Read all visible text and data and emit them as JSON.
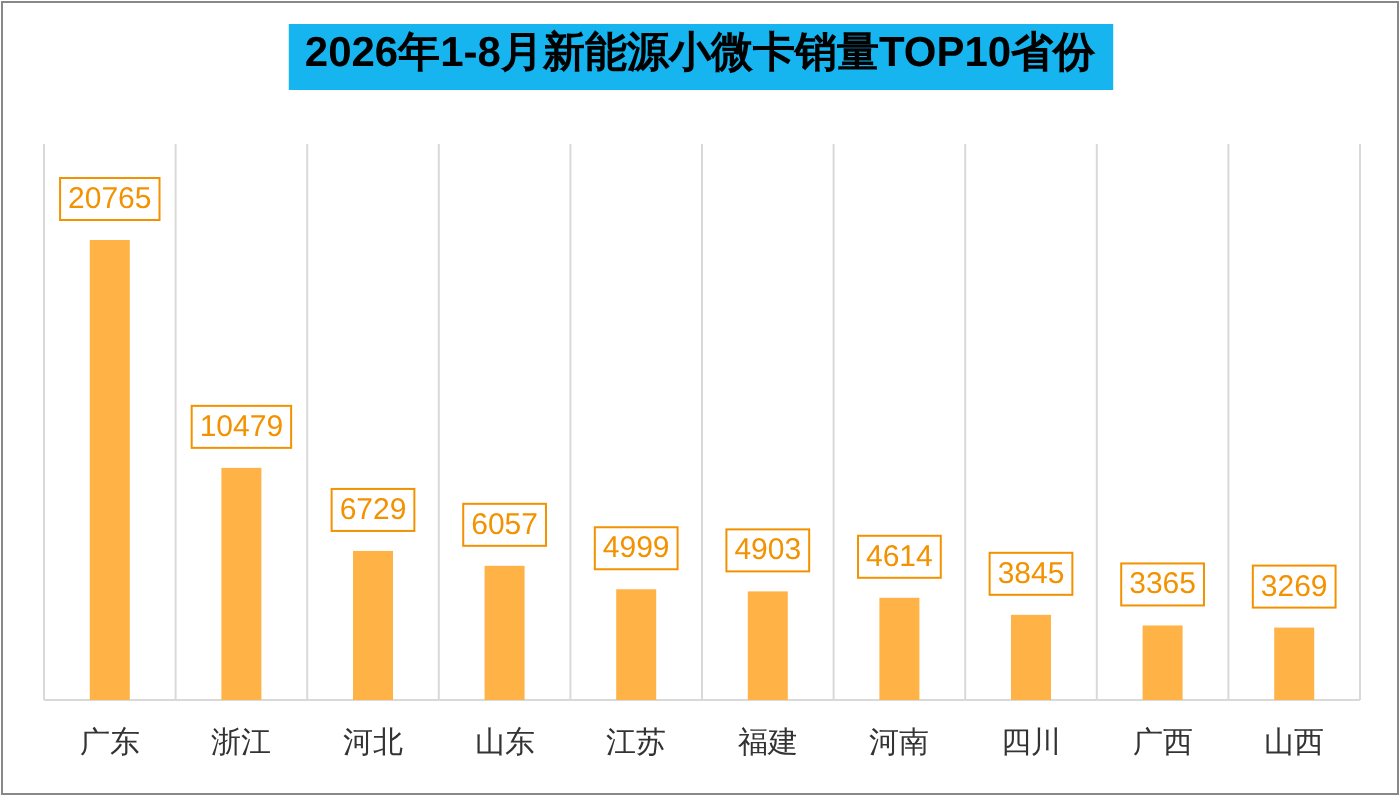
{
  "chart_data": {
    "type": "bar",
    "title": "2026年1-8月新能源小微卡销量TOP10省份",
    "categories": [
      "广东",
      "浙江",
      "河北",
      "山东",
      "江苏",
      "福建",
      "河南",
      "四川",
      "广西",
      "山西"
    ],
    "values": [
      20765,
      10479,
      6729,
      6057,
      4999,
      4903,
      4614,
      3845,
      3365,
      3269
    ],
    "color": "#ffb347",
    "data_labels": true,
    "grid": "x"
  }
}
